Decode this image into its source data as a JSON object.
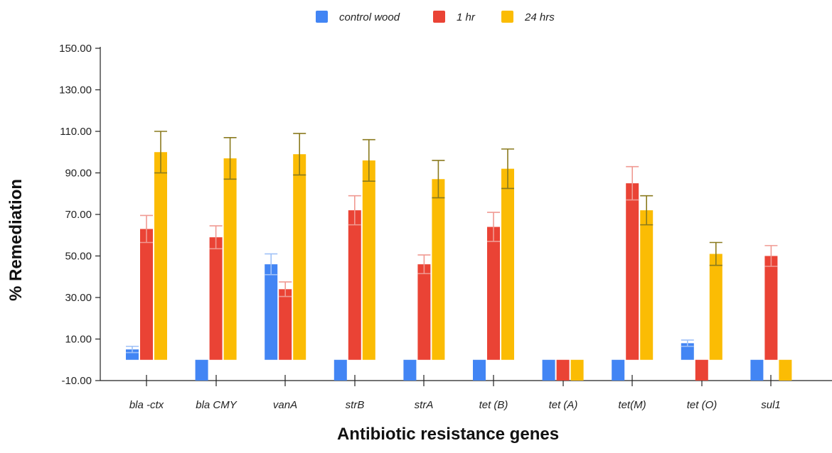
{
  "chart_data": {
    "type": "bar",
    "title": "",
    "xlabel": "Antibiotic resistance genes",
    "ylabel": "% Remediation",
    "ylim": [
      -10,
      150
    ],
    "yticks": [
      -10,
      10,
      30,
      50,
      70,
      90,
      110,
      130,
      150
    ],
    "ytick_labels": [
      "-10.00",
      "10.00",
      "30.00",
      "50.00",
      "70.00",
      "90.00",
      "110.00",
      "130.00",
      "150.00"
    ],
    "legend_position": "top",
    "categories": [
      "bla -ctx",
      "bla CMY",
      "vanA",
      "strB",
      "strA",
      "tet (B)",
      "tet (A)",
      "tet(M)",
      "tet (O)",
      "sul1"
    ],
    "series": [
      {
        "name": "control wood",
        "color": "#4285f4",
        "error_color": "#9fc1f7",
        "values": [
          5,
          -10,
          46,
          -10,
          -10,
          -10,
          -10,
          -10,
          8,
          -10
        ],
        "errors": [
          1.5,
          0,
          5,
          0,
          0,
          0,
          0,
          0,
          1.5,
          0
        ]
      },
      {
        "name": "1 hr",
        "color": "#ea4335",
        "error_color": "#f09a92",
        "values": [
          63,
          59,
          34,
          72,
          46,
          64,
          -10,
          85,
          -10,
          50
        ],
        "errors": [
          6.5,
          5.5,
          3.5,
          7,
          4.5,
          7,
          0,
          8,
          0,
          5
        ]
      },
      {
        "name": "24 hrs",
        "color": "#fbbc04",
        "error_color": "#8a7a1e",
        "values": [
          100,
          97,
          99,
          96,
          87,
          92,
          -10,
          72,
          51,
          -10
        ],
        "errors": [
          10,
          10,
          10,
          10,
          9,
          9.5,
          0,
          7,
          5.5,
          0
        ]
      }
    ]
  }
}
